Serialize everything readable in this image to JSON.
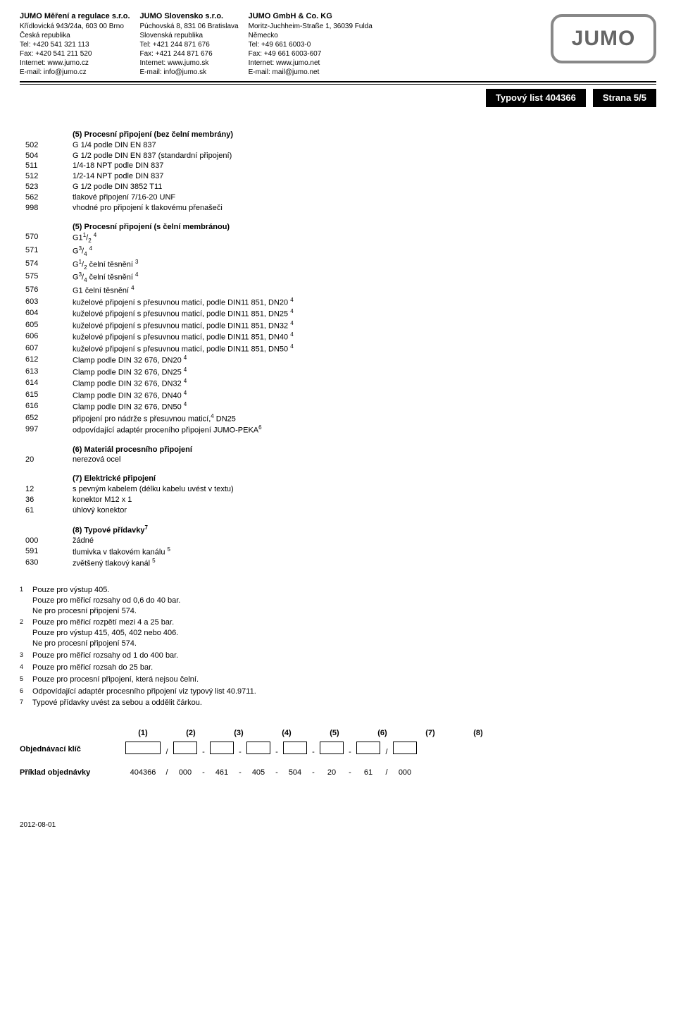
{
  "companies": [
    {
      "name": "JUMO Měření a regulace s.r.o.",
      "lines": [
        "Křídlovická 943/24a, 603 00 Brno",
        "Česká republika",
        "Tel: +420 541 321 113",
        "Fax: +420 541 211 520",
        "Internet: www.jumo.cz",
        "E-mail: info@jumo.cz"
      ]
    },
    {
      "name": "JUMO Slovensko s.r.o.",
      "lines": [
        "Púchovská 8, 831 06 Bratislava",
        "Slovenská republika",
        "Tel: +421 244 871 676",
        "Fax: +421 244 871 676",
        "Internet: www.jumo.sk",
        "E-mail: info@jumo.sk"
      ]
    },
    {
      "name": "JUMO GmbH & Co. KG",
      "lines": [
        "Moritz-Juchheim-Straße 1, 36039 Fulda",
        "Německo",
        "Tel: +49 661 6003-0",
        "Fax: +49 661 6003-607",
        "Internet: www.jumo.net",
        "E-mail: mail@jumo.net"
      ]
    }
  ],
  "logo_text": "JUMO",
  "typbar_left": "Typový list 404366",
  "typbar_right": "Strana 5/5",
  "section5a_head": "(5)   Procesní připojení (bez čelní membrány)",
  "rows5a": [
    {
      "c": "502",
      "d": "G 1/4 podle DIN EN 837"
    },
    {
      "c": "504",
      "d": "G 1/2 podle DIN EN 837 (standardní připojení)"
    },
    {
      "c": "511",
      "d": "1/4-18 NPT podle DIN 837"
    },
    {
      "c": "512",
      "d": "1/2-14 NPT podle DIN 837"
    },
    {
      "c": "523",
      "d": " G 1/2 podle DIN 3852 T11"
    },
    {
      "c": "562",
      "d": "tlakové připojení 7/16-20 UNF"
    },
    {
      "c": "998",
      "d": "vhodné pro připojení k tlakovému přenašeči"
    }
  ],
  "section5b_head": "(5)   Procesní připojení (s čelní membránou)",
  "rows5b": [
    {
      "c": "570",
      "d": "G1<span class='sup'>1</span>/<span class='sub'>2</span> <span class='sup'>4</span>"
    },
    {
      "c": "571",
      "d": "G<span class='sup'>3</span>/<span class='sub'>4</span>  <span class='sup'>4</span>"
    },
    {
      "c": "574",
      "d": "G<span class='sup'>1</span>/<span class='sub'>2</span> čelní těsnění <span class='sup'>3</span>"
    },
    {
      "c": "575",
      "d": "G<span class='sup'>3</span>/<span class='sub'>4</span> čelní těsnění <span class='sup'>4</span>"
    },
    {
      "c": "576",
      "d": "G1 čelní těsnění <span class='sup'>4</span>"
    },
    {
      "c": "603",
      "d": "kuželové připojení s přesuvnou maticí, podle DIN11 851, DN20 <span class='sup'>4</span>"
    },
    {
      "c": "604",
      "d": "kuželové připojení s přesuvnou maticí, podle DIN11 851, DN25 <span class='sup'>4</span>"
    },
    {
      "c": "605",
      "d": "kuželové připojení s přesuvnou maticí, podle DIN11 851, DN32 <span class='sup'>4</span>"
    },
    {
      "c": "606",
      "d": "kuželové připojení s přesuvnou maticí, podle DIN11 851, DN40 <span class='sup'>4</span>"
    },
    {
      "c": "607",
      "d": "kuželové připojení s přesuvnou maticí, podle DIN11 851, DN50 <span class='sup'>4</span>"
    },
    {
      "c": "612",
      "d": "Clamp podle DIN 32 676, DN20 <span class='sup'>4</span>"
    },
    {
      "c": "613",
      "d": "Clamp podle DIN 32 676, DN25 <span class='sup'>4</span>"
    },
    {
      "c": "614",
      "d": "Clamp podle DIN 32 676, DN32 <span class='sup'>4</span>"
    },
    {
      "c": "615",
      "d": "Clamp podle DIN 32 676, DN40 <span class='sup'>4</span>"
    },
    {
      "c": "616",
      "d": "Clamp podle DIN 32 676, DN50 <span class='sup'>4</span>"
    },
    {
      "c": "652",
      "d": "připojení pro nádrže s přesuvnou maticí,<span class='sup'>4</span> DN25"
    },
    {
      "c": "997",
      "d": "odpovídající adaptér proceního připojení JUMO-PEKA<span class='sup'>6</span>"
    }
  ],
  "section6_head": "(6)   Materiál procesního připojení",
  "rows6": [
    {
      "c": "20",
      "d": "nerezová ocel"
    }
  ],
  "section7_head": "(7)   Elektrické připojení",
  "rows7": [
    {
      "c": "12",
      "d": "s pevným kabelem (délku kabelu uvést v textu)"
    },
    {
      "c": "36",
      "d": "konektor M12 x 1"
    },
    {
      "c": "61",
      "d": "úhlový konektor"
    }
  ],
  "section8_head": "(8)   Typové přídavky<span class='sup'>7</span>",
  "rows8": [
    {
      "c": "000",
      "d": "žádné"
    },
    {
      "c": "591",
      "d": "tlumivka v tlakovém kanálu <span class='sup'>5</span>"
    },
    {
      "c": "630",
      "d": "zvětšený tlakový kanál <span class='sup'>5</span>"
    }
  ],
  "footnotes": [
    {
      "n": "1",
      "t": "Pouze pro výstup 405.<br>Pouze pro měřicí rozsahy od 0,6 do 40 bar.<br>Ne pro procesní připojení 574."
    },
    {
      "n": "2",
      "t": "Pouze pro měřicí rozpětí mezi 4 a 25 bar.<br>Pouze pro výstup 415, 405, 402 nebo 406.<br>Ne pro procesní připojení 574."
    },
    {
      "n": "3",
      "t": "Pouze pro měřicí rozsahy od 1 do 400 bar."
    },
    {
      "n": "4",
      "t": "Pouze pro měřicí rozsah do 25 bar."
    },
    {
      "n": "5",
      "t": "Pouze pro procesní připojení, která nejsou čelní."
    },
    {
      "n": "6",
      "t": "Odpovídající adaptér procesního připojení viz typový list 40.9711."
    },
    {
      "n": "7",
      "t": "Typové přídavky uvést za sebou a oddělit čárkou."
    }
  ],
  "order_cols": [
    "(1)",
    "(2)",
    "(3)",
    "(4)",
    "(5)",
    "(6)",
    "(7)",
    "(8)"
  ],
  "order_key_label": "Objednávací klíč",
  "example_label": "Příklad objednávky",
  "example_vals": [
    "404366",
    "000",
    "461",
    "405",
    "504",
    "20",
    "61",
    "000"
  ],
  "example_seps": [
    "/",
    "-",
    "-",
    "-",
    "-",
    "-",
    "/"
  ],
  "date": "2012-08-01"
}
